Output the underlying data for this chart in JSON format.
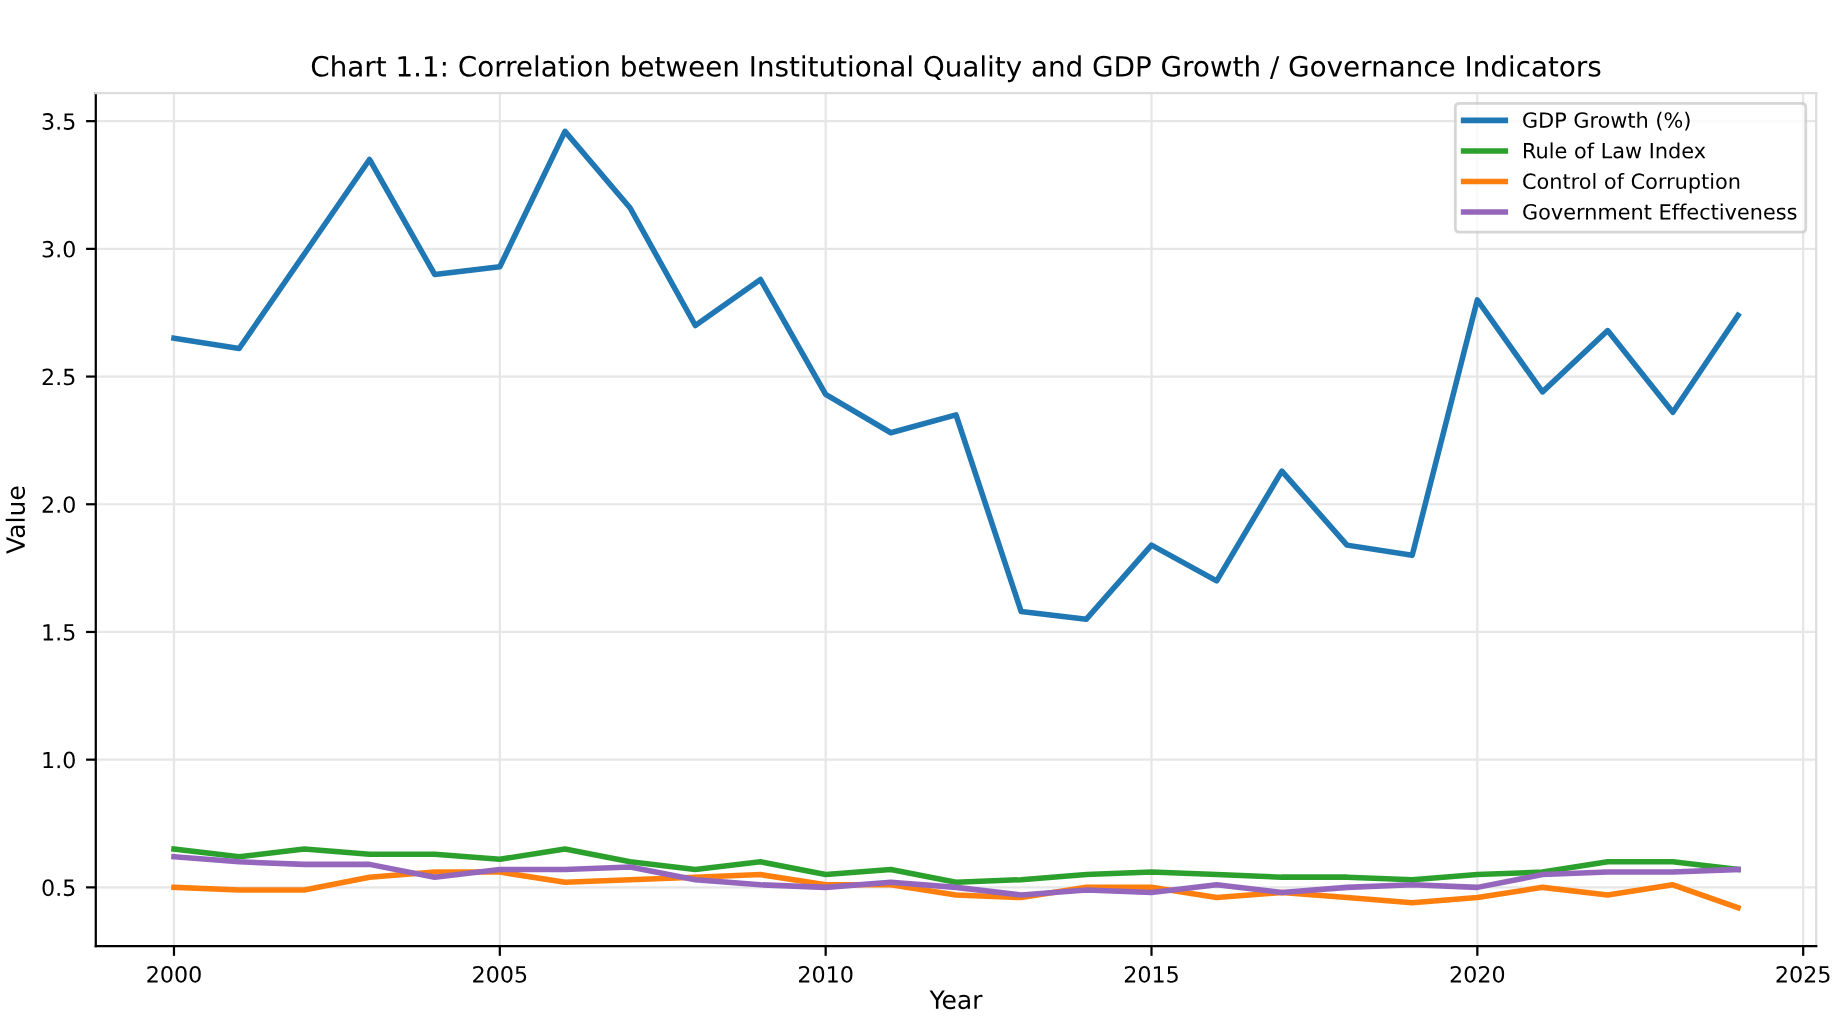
{
  "chart_data": {
    "type": "line",
    "title": "Chart 1.1: Correlation between Institutional Quality and GDP Growth / Governance Indicators",
    "xlabel": "Year",
    "ylabel": "Value",
    "x": [
      2000,
      2001,
      2002,
      2003,
      2004,
      2005,
      2006,
      2007,
      2008,
      2009,
      2010,
      2011,
      2012,
      2013,
      2014,
      2015,
      2016,
      2017,
      2018,
      2019,
      2020,
      2021,
      2022,
      2023,
      2024
    ],
    "series": [
      {
        "name": "GDP Growth (%)",
        "color": "#1f77b4",
        "values": [
          2.65,
          2.61,
          2.98,
          3.35,
          2.9,
          2.93,
          3.46,
          3.16,
          2.7,
          2.88,
          2.43,
          2.28,
          2.35,
          1.58,
          1.55,
          1.84,
          1.7,
          2.13,
          1.84,
          1.8,
          2.8,
          2.44,
          2.68,
          2.36,
          2.74
        ]
      },
      {
        "name": "Rule of Law Index",
        "color": "#2ca02c",
        "values": [
          0.65,
          0.62,
          0.65,
          0.63,
          0.63,
          0.61,
          0.65,
          0.6,
          0.57,
          0.6,
          0.55,
          0.57,
          0.52,
          0.53,
          0.55,
          0.56,
          0.55,
          0.54,
          0.54,
          0.53,
          0.55,
          0.56,
          0.6,
          0.6,
          0.57
        ]
      },
      {
        "name": "Control of Corruption",
        "color": "#ff7f0e",
        "values": [
          0.5,
          0.49,
          0.49,
          0.54,
          0.56,
          0.56,
          0.52,
          0.53,
          0.54,
          0.55,
          0.51,
          0.51,
          0.47,
          0.46,
          0.5,
          0.5,
          0.46,
          0.48,
          0.46,
          0.44,
          0.46,
          0.5,
          0.47,
          0.51,
          0.42
        ]
      },
      {
        "name": "Government Effectiveness",
        "color": "#9467bd",
        "values": [
          0.62,
          0.6,
          0.59,
          0.59,
          0.54,
          0.57,
          0.57,
          0.58,
          0.53,
          0.51,
          0.5,
          0.52,
          0.5,
          0.47,
          0.49,
          0.48,
          0.51,
          0.48,
          0.5,
          0.51,
          0.5,
          0.55,
          0.56,
          0.56,
          0.57
        ]
      }
    ],
    "xlim": [
      1998.8,
      2025.2
    ],
    "xticks": [
      2000,
      2005,
      2010,
      2015,
      2020,
      2025
    ],
    "ylim": [
      0.27,
      3.61
    ],
    "yticks": [
      0.5,
      {
        "value": 1,
        "label": "1.0"
      },
      1.5,
      {
        "value": 2,
        "label": "2.0"
      },
      2.5,
      {
        "value": 3,
        "label": "3.0"
      },
      3.5
    ],
    "grid": true,
    "legend": "top right",
    "marker": "none",
    "line_style": "solid"
  }
}
